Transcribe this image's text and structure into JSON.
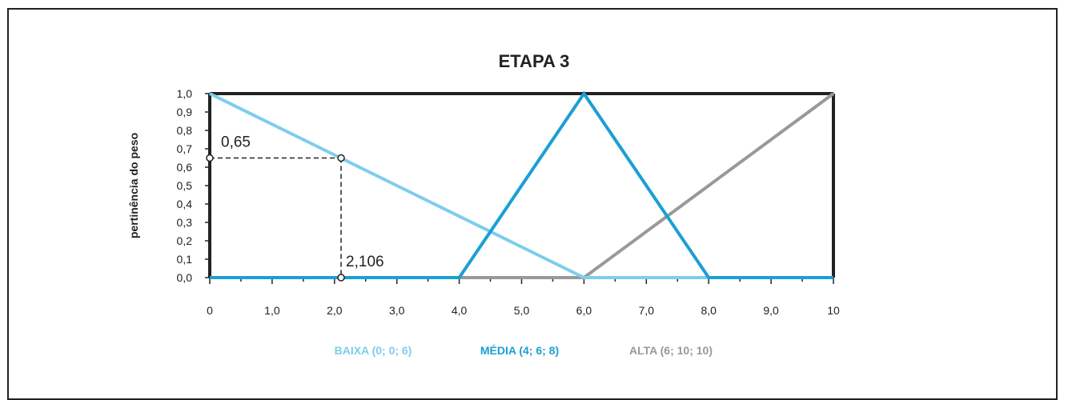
{
  "chart_data": {
    "type": "line",
    "title": "ETAPA 3",
    "xlabel": "",
    "ylabel": "pertinência do peso",
    "xlim": [
      0,
      10
    ],
    "ylim": [
      0,
      1
    ],
    "x_ticks": [
      {
        "value": 0,
        "label": "0"
      },
      {
        "value": 1,
        "label": "1,0"
      },
      {
        "value": 2,
        "label": "2,0"
      },
      {
        "value": 3,
        "label": "3,0"
      },
      {
        "value": 4,
        "label": "4,0"
      },
      {
        "value": 5,
        "label": "5,0"
      },
      {
        "value": 6,
        "label": "6,0"
      },
      {
        "value": 7,
        "label": "7,0"
      },
      {
        "value": 8,
        "label": "8,0"
      },
      {
        "value": 9,
        "label": "9,0"
      },
      {
        "value": 10,
        "label": "10"
      }
    ],
    "y_ticks": [
      {
        "value": 0.0,
        "label": "0,0"
      },
      {
        "value": 0.1,
        "label": "0,1"
      },
      {
        "value": 0.2,
        "label": "0,2"
      },
      {
        "value": 0.3,
        "label": "0,3"
      },
      {
        "value": 0.4,
        "label": "0,4"
      },
      {
        "value": 0.5,
        "label": "0,5"
      },
      {
        "value": 0.6,
        "label": "0,6"
      },
      {
        "value": 0.7,
        "label": "0,7"
      },
      {
        "value": 0.8,
        "label": "0,8"
      },
      {
        "value": 0.9,
        "label": "0,9"
      },
      {
        "value": 1.0,
        "label": "1,0"
      }
    ],
    "series": [
      {
        "name": "BAIXA (0; 0; 6)",
        "color": "#7dcdee",
        "points": [
          [
            0,
            1
          ],
          [
            6,
            0
          ],
          [
            10,
            0
          ]
        ]
      },
      {
        "name": "MÉDIA (4; 6; 8)",
        "color": "#1a9fd4",
        "points": [
          [
            0,
            0
          ],
          [
            4,
            0
          ],
          [
            6,
            1
          ],
          [
            8,
            0
          ],
          [
            10,
            0
          ]
        ]
      },
      {
        "name": "ALTA (6; 10; 10)",
        "color": "#999999",
        "points": [
          [
            4,
            0
          ],
          [
            6,
            0
          ],
          [
            10,
            1
          ]
        ]
      }
    ],
    "annotations": [
      {
        "id": "x-value",
        "label": "2,106",
        "x": 2.106,
        "y": 0
      },
      {
        "id": "y-value",
        "label": "0,65",
        "x": 0,
        "y": 0.65
      }
    ],
    "legend_position": "bottom",
    "grid": false
  }
}
